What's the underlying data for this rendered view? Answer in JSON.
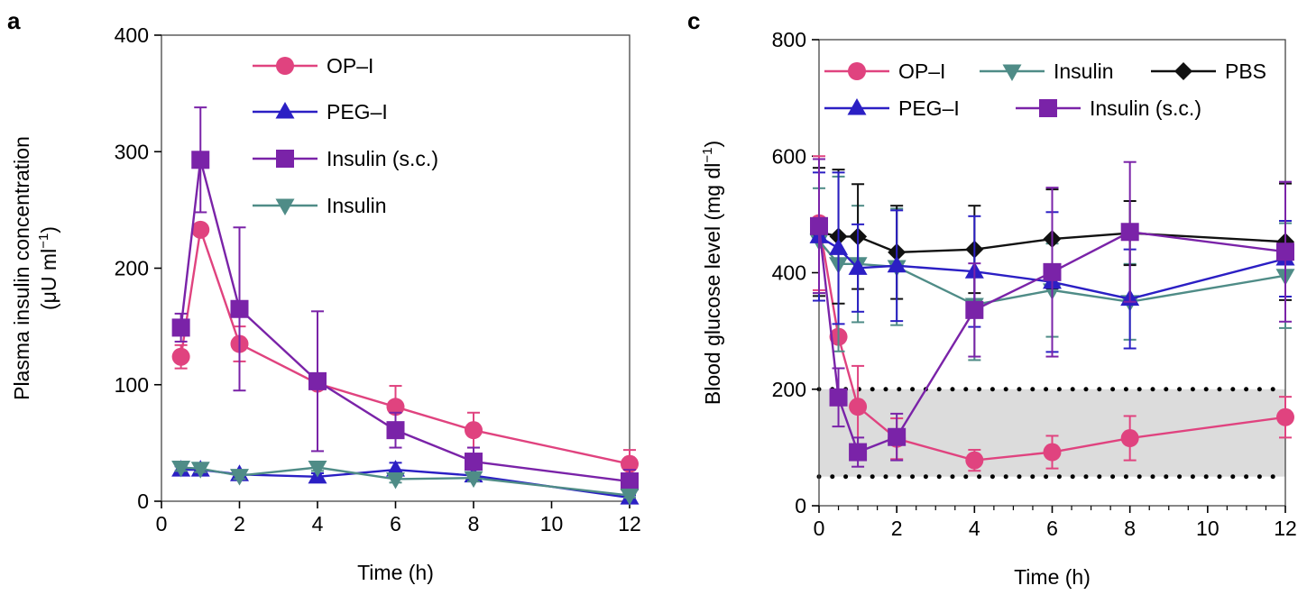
{
  "figure": {
    "panels": [
      "a",
      "c"
    ]
  },
  "chart_data": [
    {
      "panel": "a",
      "type": "line",
      "title": "",
      "xlabel": "Time (h)",
      "ylabel": "Plasma insulin concentration",
      "ylabel_units": "(μU ml",
      "ylabel_units_sup": "−1",
      "ylabel_units_end": ")",
      "xlim": [
        0,
        12
      ],
      "ylim": [
        0,
        400
      ],
      "xticks": [
        0,
        2,
        4,
        6,
        8,
        10,
        12
      ],
      "yticks": [
        0,
        100,
        200,
        300,
        400
      ],
      "legend_position": "top-right",
      "series": [
        {
          "name": "OP–I",
          "color": "#e0437f",
          "marker": "circle",
          "x": [
            0.5,
            1,
            2,
            4,
            6,
            8,
            12
          ],
          "y": [
            124,
            233,
            135,
            101,
            81,
            61,
            32
          ],
          "err": [
            10,
            0,
            15,
            0,
            18,
            15,
            12
          ]
        },
        {
          "name": "PEG–I",
          "color": "#2b1fc4",
          "marker": "triangle-up",
          "x": [
            0.5,
            1,
            2,
            4,
            6,
            8,
            12
          ],
          "y": [
            27,
            27,
            23,
            21,
            27,
            22,
            3
          ],
          "err": [
            3,
            3,
            3,
            3,
            6,
            5,
            2
          ]
        },
        {
          "name": "Insulin (s.c.)",
          "color": "#7a23a8",
          "marker": "square",
          "x": [
            0.5,
            1,
            2,
            4,
            6,
            8,
            12
          ],
          "y": [
            149,
            293,
            165,
            103,
            61,
            34,
            17
          ],
          "err": [
            12,
            45,
            70,
            60,
            15,
            12,
            10
          ]
        },
        {
          "name": "Insulin",
          "color": "#4f8c87",
          "marker": "triangle-down",
          "x": [
            0.5,
            1,
            2,
            4,
            6,
            8,
            12
          ],
          "y": [
            29,
            28,
            22,
            29,
            19,
            20,
            5
          ],
          "err": [
            3,
            3,
            3,
            3,
            3,
            3,
            2
          ]
        }
      ]
    },
    {
      "panel": "c",
      "type": "line",
      "title": "",
      "xlabel": "Time (h)",
      "ylabel": "Blood glucose level (mg dl",
      "ylabel_sup": "−1",
      "ylabel_end": ")",
      "xlim": [
        0,
        12
      ],
      "ylim": [
        0,
        800
      ],
      "xticks": [
        0,
        2,
        4,
        6,
        8,
        10,
        12
      ],
      "xminor": [
        0.5,
        1,
        1.5,
        2.5,
        3,
        3.5,
        4.5,
        5,
        5.5,
        6.5,
        7,
        7.5,
        8.5,
        9,
        9.5,
        10.5,
        11,
        11.5
      ],
      "yticks": [
        0,
        200,
        400,
        600,
        800
      ],
      "normoglycemic_band": [
        50,
        200
      ],
      "legend_position": "top",
      "series": [
        {
          "name": "OP–I",
          "color": "#e0437f",
          "marker": "circle",
          "x": [
            0,
            0.5,
            1,
            2,
            4,
            6,
            8,
            12
          ],
          "y": [
            485,
            290,
            170,
            115,
            78,
            92,
            116,
            152
          ],
          "err": [
            115,
            0,
            70,
            35,
            18,
            28,
            38,
            35
          ]
        },
        {
          "name": "Insulin",
          "color": "#4f8c87",
          "marker": "triangle-down",
          "x": [
            0,
            0.5,
            1,
            2,
            4,
            6,
            8,
            12
          ],
          "y": [
            455,
            415,
            415,
            410,
            345,
            370,
            350,
            395
          ],
          "err": [
            90,
            150,
            100,
            100,
            95,
            80,
            65,
            90
          ]
        },
        {
          "name": "PBS",
          "color": "#111111",
          "marker": "diamond",
          "x": [
            0,
            0.5,
            1,
            2,
            4,
            6,
            8,
            12
          ],
          "y": [
            470,
            462,
            462,
            435,
            440,
            458,
            468,
            453
          ],
          "err": [
            110,
            115,
            90,
            80,
            75,
            85,
            55,
            100
          ]
        },
        {
          "name": "PEG–I",
          "color": "#2b1fc4",
          "marker": "triangle-up",
          "x": [
            0,
            0.5,
            1,
            2,
            4,
            6,
            8,
            12
          ],
          "y": [
            462,
            442,
            408,
            412,
            402,
            384,
            355,
            424
          ],
          "err": [
            110,
            130,
            75,
            95,
            95,
            120,
            85,
            65
          ]
        },
        {
          "name": "Insulin (s.c.)",
          "color": "#7a23a8",
          "marker": "square",
          "x": [
            0,
            0.5,
            1,
            2,
            4,
            6,
            8,
            12
          ],
          "y": [
            480,
            186,
            92,
            118,
            336,
            401,
            470,
            436
          ],
          "err": [
            115,
            50,
            25,
            40,
            80,
            145,
            120,
            120
          ]
        }
      ]
    }
  ]
}
